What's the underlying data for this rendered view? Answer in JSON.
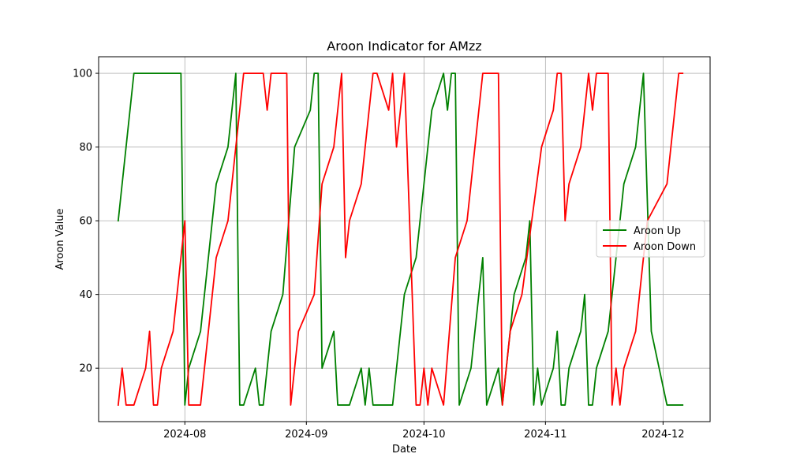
{
  "chart_data": {
    "type": "line",
    "title": "Aroon Indicator for AMzz",
    "xlabel": "Date",
    "ylabel": "Aroon Value",
    "xlim": [
      "2024-07-10",
      "2024-12-13"
    ],
    "ylim": [
      5.5,
      104.5
    ],
    "grid": true,
    "legend": "center-right",
    "x_ticks": [
      {
        "value": "2024-08-01",
        "label": "2024-08"
      },
      {
        "value": "2024-09-01",
        "label": "2024-09"
      },
      {
        "value": "2024-10-01",
        "label": "2024-10"
      },
      {
        "value": "2024-11-01",
        "label": "2024-11"
      },
      {
        "value": "2024-12-01",
        "label": "2024-12"
      }
    ],
    "y_ticks": [
      20,
      40,
      60,
      80,
      100
    ],
    "series": [
      {
        "name": "Aroon Up",
        "color": "#008000",
        "points": [
          [
            "2024-07-15",
            60
          ],
          [
            "2024-07-19",
            100
          ],
          [
            "2024-07-31",
            100
          ],
          [
            "2024-08-01",
            10
          ],
          [
            "2024-08-02",
            20
          ],
          [
            "2024-08-05",
            30
          ],
          [
            "2024-08-09",
            70
          ],
          [
            "2024-08-12",
            80
          ],
          [
            "2024-08-14",
            100
          ],
          [
            "2024-08-15",
            10
          ],
          [
            "2024-08-16",
            10
          ],
          [
            "2024-08-19",
            20
          ],
          [
            "2024-08-20",
            10
          ],
          [
            "2024-08-21",
            10
          ],
          [
            "2024-08-23",
            30
          ],
          [
            "2024-08-26",
            40
          ],
          [
            "2024-08-29",
            80
          ],
          [
            "2024-09-02",
            90
          ],
          [
            "2024-09-03",
            100
          ],
          [
            "2024-09-04",
            100
          ],
          [
            "2024-09-05",
            20
          ],
          [
            "2024-09-08",
            30
          ],
          [
            "2024-09-09",
            10
          ],
          [
            "2024-09-12",
            10
          ],
          [
            "2024-09-15",
            20
          ],
          [
            "2024-09-16",
            10
          ],
          [
            "2024-09-17",
            20
          ],
          [
            "2024-09-18",
            10
          ],
          [
            "2024-09-23",
            10
          ],
          [
            "2024-09-26",
            40
          ],
          [
            "2024-09-29",
            50
          ],
          [
            "2024-10-03",
            90
          ],
          [
            "2024-10-06",
            100
          ],
          [
            "2024-10-07",
            90
          ],
          [
            "2024-10-08",
            100
          ],
          [
            "2024-10-09",
            100
          ],
          [
            "2024-10-10",
            10
          ],
          [
            "2024-10-13",
            20
          ],
          [
            "2024-10-16",
            50
          ],
          [
            "2024-10-17",
            10
          ],
          [
            "2024-10-20",
            20
          ],
          [
            "2024-10-21",
            10
          ],
          [
            "2024-10-24",
            40
          ],
          [
            "2024-10-27",
            50
          ],
          [
            "2024-10-28",
            60
          ],
          [
            "2024-10-29",
            10
          ],
          [
            "2024-10-30",
            20
          ],
          [
            "2024-10-31",
            10
          ],
          [
            "2024-11-03",
            20
          ],
          [
            "2024-11-04",
            30
          ],
          [
            "2024-11-05",
            10
          ],
          [
            "2024-11-06",
            10
          ],
          [
            "2024-11-07",
            20
          ],
          [
            "2024-11-10",
            30
          ],
          [
            "2024-11-11",
            40
          ],
          [
            "2024-11-12",
            10
          ],
          [
            "2024-11-13",
            10
          ],
          [
            "2024-11-14",
            20
          ],
          [
            "2024-11-17",
            30
          ],
          [
            "2024-11-21",
            70
          ],
          [
            "2024-11-24",
            80
          ],
          [
            "2024-11-26",
            100
          ],
          [
            "2024-11-28",
            30
          ],
          [
            "2024-12-02",
            10
          ],
          [
            "2024-12-06",
            10
          ]
        ]
      },
      {
        "name": "Aroon Down",
        "color": "#ff0000",
        "points": [
          [
            "2024-07-15",
            10
          ],
          [
            "2024-07-16",
            20
          ],
          [
            "2024-07-17",
            10
          ],
          [
            "2024-07-19",
            10
          ],
          [
            "2024-07-22",
            20
          ],
          [
            "2024-07-23",
            30
          ],
          [
            "2024-07-24",
            10
          ],
          [
            "2024-07-25",
            10
          ],
          [
            "2024-07-26",
            20
          ],
          [
            "2024-07-29",
            30
          ],
          [
            "2024-08-01",
            60
          ],
          [
            "2024-08-02",
            10
          ],
          [
            "2024-08-05",
            10
          ],
          [
            "2024-08-09",
            50
          ],
          [
            "2024-08-12",
            60
          ],
          [
            "2024-08-16",
            100
          ],
          [
            "2024-08-21",
            100
          ],
          [
            "2024-08-22",
            90
          ],
          [
            "2024-08-23",
            100
          ],
          [
            "2024-08-27",
            100
          ],
          [
            "2024-08-28",
            10
          ],
          [
            "2024-08-30",
            30
          ],
          [
            "2024-09-03",
            40
          ],
          [
            "2024-09-05",
            70
          ],
          [
            "2024-09-08",
            80
          ],
          [
            "2024-09-10",
            100
          ],
          [
            "2024-09-11",
            50
          ],
          [
            "2024-09-12",
            60
          ],
          [
            "2024-09-15",
            70
          ],
          [
            "2024-09-18",
            100
          ],
          [
            "2024-09-19",
            100
          ],
          [
            "2024-09-22",
            90
          ],
          [
            "2024-09-23",
            100
          ],
          [
            "2024-09-24",
            80
          ],
          [
            "2024-09-26",
            100
          ],
          [
            "2024-09-29",
            10
          ],
          [
            "2024-09-30",
            10
          ],
          [
            "2024-10-01",
            20
          ],
          [
            "2024-10-02",
            10
          ],
          [
            "2024-10-03",
            20
          ],
          [
            "2024-10-06",
            10
          ],
          [
            "2024-10-09",
            50
          ],
          [
            "2024-10-12",
            60
          ],
          [
            "2024-10-16",
            100
          ],
          [
            "2024-10-20",
            100
          ],
          [
            "2024-10-21",
            10
          ],
          [
            "2024-10-23",
            30
          ],
          [
            "2024-10-26",
            40
          ],
          [
            "2024-10-31",
            80
          ],
          [
            "2024-11-03",
            90
          ],
          [
            "2024-11-04",
            100
          ],
          [
            "2024-11-05",
            100
          ],
          [
            "2024-11-06",
            60
          ],
          [
            "2024-11-07",
            70
          ],
          [
            "2024-11-10",
            80
          ],
          [
            "2024-11-12",
            100
          ],
          [
            "2024-11-13",
            90
          ],
          [
            "2024-11-14",
            100
          ],
          [
            "2024-11-17",
            100
          ],
          [
            "2024-11-18",
            10
          ],
          [
            "2024-11-19",
            20
          ],
          [
            "2024-11-20",
            10
          ],
          [
            "2024-11-21",
            20
          ],
          [
            "2024-11-24",
            30
          ],
          [
            "2024-11-27",
            60
          ],
          [
            "2024-12-02",
            70
          ],
          [
            "2024-12-05",
            100
          ],
          [
            "2024-12-06",
            100
          ]
        ]
      }
    ]
  }
}
